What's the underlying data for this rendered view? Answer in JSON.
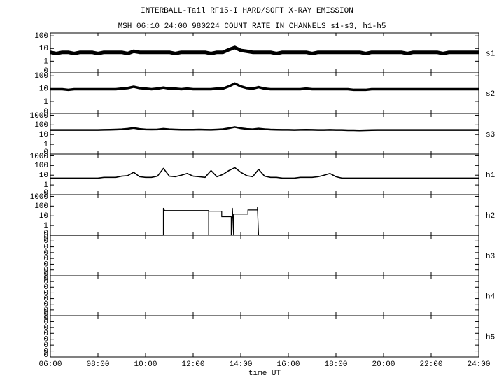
{
  "chart_data": {
    "type": "line",
    "title": "INTERBALL-Tail RF15-I HARD/SOFT X-RAY EMISSION",
    "subtitle": "MSH 06:10 24:00 980224  COUNT RATE IN CHANNELS s1-s3, h1-h5",
    "xlabel": "time UT",
    "xlim": [
      6,
      24
    ],
    "xticks": [
      {
        "value": 6,
        "label": "06:00"
      },
      {
        "value": 8,
        "label": "08:00"
      },
      {
        "value": 10,
        "label": "10:00"
      },
      {
        "value": 12,
        "label": "12:00"
      },
      {
        "value": 14,
        "label": "14:00"
      },
      {
        "value": 16,
        "label": "16:00"
      },
      {
        "value": 18,
        "label": "18:00"
      },
      {
        "value": 20,
        "label": "20:00"
      },
      {
        "value": 22,
        "label": "22:00"
      },
      {
        "value": 24,
        "label": "24:00"
      }
    ],
    "x": [
      6,
      6.25,
      6.5,
      6.75,
      7,
      7.25,
      7.5,
      7.75,
      8,
      8.25,
      8.5,
      8.75,
      9,
      9.25,
      9.5,
      9.75,
      10,
      10.25,
      10.5,
      10.75,
      11,
      11.25,
      11.5,
      11.75,
      12,
      12.25,
      12.5,
      12.75,
      13,
      13.25,
      13.5,
      13.75,
      14,
      14.25,
      14.5,
      14.75,
      15,
      15.25,
      15.5,
      15.75,
      16,
      16.25,
      16.5,
      16.75,
      17,
      17.25,
      17.5,
      17.75,
      18,
      18.25,
      18.5,
      18.75,
      19,
      19.25,
      19.5,
      19.75,
      20,
      20.25,
      20.5,
      20.75,
      21,
      21.25,
      21.5,
      21.75,
      22,
      22.25,
      22.5,
      22.75,
      23,
      23.25,
      23.5,
      23.75,
      24
    ],
    "panels": [
      {
        "label": "s1",
        "log": true,
        "ylim": [
          0.12,
          170
        ],
        "yticks": [
          {
            "value": 0,
            "label": "0"
          },
          1,
          10,
          100
        ],
        "values": [
          5,
          4,
          5,
          5,
          4,
          5,
          5,
          5,
          4,
          5,
          5,
          5,
          5,
          4,
          6,
          5,
          5,
          5,
          5,
          5,
          5,
          4,
          5,
          5,
          5,
          5,
          5,
          4,
          5,
          5,
          8,
          12,
          7,
          6,
          5,
          5,
          5,
          5,
          4,
          5,
          5,
          5,
          5,
          5,
          4,
          5,
          5,
          5,
          5,
          5,
          5,
          5,
          5,
          4,
          5,
          5,
          5,
          5,
          5,
          5,
          4,
          5,
          5,
          5,
          5,
          5,
          4,
          5,
          5,
          5,
          5,
          5,
          5
        ]
      },
      {
        "label": "s2",
        "log": true,
        "ylim": [
          0.12,
          170
        ],
        "yticks": [
          {
            "value": 0,
            "label": "0"
          },
          1,
          10,
          100
        ],
        "values": [
          9,
          9,
          9,
          8,
          9,
          9,
          9,
          9,
          9,
          9,
          9,
          9,
          10,
          11,
          14,
          11,
          10,
          9,
          10,
          12,
          10,
          10,
          9,
          10,
          9,
          9,
          9,
          9,
          10,
          10,
          15,
          25,
          15,
          11,
          10,
          13,
          10,
          9,
          9,
          9,
          9,
          9,
          9,
          10,
          9,
          9,
          9,
          9,
          9,
          9,
          9,
          8,
          8,
          8,
          9,
          9,
          9,
          9,
          9,
          9,
          9,
          9,
          9,
          9,
          9,
          9,
          9,
          9,
          9,
          9,
          9,
          9,
          9
        ]
      },
      {
        "label": "s3",
        "log": true,
        "ylim": [
          0.1,
          1500
        ],
        "yticks": [
          {
            "value": 0,
            "label": "0"
          },
          1,
          10,
          100,
          1000
        ],
        "values": [
          30,
          30,
          30,
          30,
          30,
          30,
          30,
          30,
          30,
          31,
          32,
          33,
          35,
          40,
          48,
          38,
          34,
          33,
          34,
          40,
          35,
          33,
          32,
          32,
          32,
          33,
          32,
          31,
          33,
          36,
          45,
          60,
          45,
          38,
          35,
          42,
          36,
          33,
          32,
          31,
          31,
          30,
          31,
          32,
          31,
          30,
          30,
          31,
          30,
          30,
          28,
          28,
          27,
          28,
          29,
          30,
          30,
          30,
          30,
          30,
          30,
          30,
          30,
          30,
          30,
          30,
          30,
          30,
          30,
          30,
          30,
          30,
          30
        ]
      },
      {
        "label": "h1",
        "log": true,
        "ylim": [
          0.1,
          1500
        ],
        "yticks": [
          {
            "value": 0,
            "label": "0"
          },
          1,
          10,
          100,
          1000
        ],
        "values": [
          5,
          5,
          5,
          5,
          5,
          5,
          5,
          5,
          5,
          6,
          6,
          6,
          8,
          9,
          20,
          7,
          6,
          6,
          8,
          50,
          8,
          7,
          10,
          15,
          8,
          7,
          6,
          30,
          7,
          12,
          30,
          60,
          20,
          9,
          7,
          40,
          8,
          6,
          6,
          5,
          5,
          5,
          6,
          6,
          6,
          7,
          10,
          15,
          7,
          5,
          5,
          5,
          5,
          5,
          5,
          5,
          5,
          5,
          5,
          5,
          5,
          5,
          5,
          5,
          5,
          5,
          5,
          5,
          5,
          5,
          5,
          5,
          5
        ]
      },
      {
        "label": "h2",
        "log": true,
        "ylim": [
          0.1,
          1500
        ],
        "yticks": [
          {
            "value": 0,
            "label": "0"
          },
          1,
          10,
          100,
          1000
        ],
        "x": [
          6,
          10.75,
          10.75,
          10.8,
          12.65,
          12.65,
          12.65,
          13.2,
          13.2,
          13.6,
          13.6,
          13.65,
          13.7,
          13.7,
          14.3,
          14.3,
          14.7,
          14.7,
          14.75,
          14.75,
          24
        ],
        "values": [
          0,
          0,
          60,
          35,
          35,
          0,
          30,
          30,
          8,
          8,
          0,
          60,
          0,
          15,
          15,
          40,
          40,
          70,
          0,
          0,
          0
        ]
      },
      {
        "label": "h3",
        "log": false,
        "ylim": [
          0,
          0.7
        ],
        "yticks": [
          {
            "value": 0,
            "label": "0"
          },
          {
            "value": 0.1,
            "label": "0"
          },
          {
            "value": 0.2,
            "label": "0"
          },
          {
            "value": 0.3,
            "label": "0"
          },
          {
            "value": 0.4,
            "label": "0"
          },
          {
            "value": 0.5,
            "label": "0"
          },
          {
            "value": 0.6,
            "label": "0"
          },
          {
            "value": 0.7,
            "label": "0"
          }
        ]
      },
      {
        "label": "h4",
        "log": false,
        "ylim": [
          0,
          0.7
        ],
        "yticks": [
          {
            "value": 0,
            "label": "0"
          },
          {
            "value": 0.1,
            "label": "0"
          },
          {
            "value": 0.2,
            "label": "0"
          },
          {
            "value": 0.3,
            "label": "0"
          },
          {
            "value": 0.4,
            "label": "0"
          },
          {
            "value": 0.5,
            "label": "0"
          },
          {
            "value": 0.6,
            "label": "0"
          },
          {
            "value": 0.7,
            "label": "0"
          }
        ]
      },
      {
        "label": "h5",
        "log": false,
        "ylim": [
          0,
          0.7
        ],
        "yticks": [
          {
            "value": 0,
            "label": "0"
          },
          {
            "value": 0.1,
            "label": "0"
          },
          {
            "value": 0.2,
            "label": "0"
          },
          {
            "value": 0.3,
            "label": "0"
          },
          {
            "value": 0.4,
            "label": "0"
          },
          {
            "value": 0.5,
            "label": "0"
          },
          {
            "value": 0.6,
            "label": "0"
          },
          {
            "value": 0.7,
            "label": "0"
          }
        ]
      }
    ]
  }
}
